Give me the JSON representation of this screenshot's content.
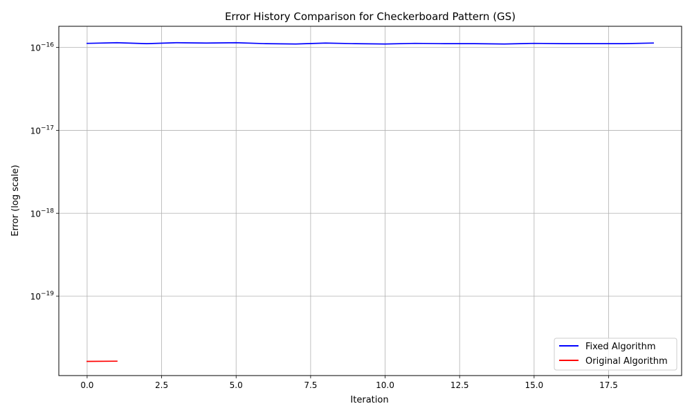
{
  "chart_data": {
    "type": "line",
    "title": "Error History Comparison for Checkerboard Pattern (GS)",
    "xlabel": "Iteration",
    "ylabel": "Error (log scale)",
    "yscale": "log",
    "grid": true,
    "legend_position": "lower-right",
    "xlim": [
      -0.95,
      19.95
    ],
    "ylim": [
      1.1e-20,
      1.8e-16
    ],
    "x_ticks": [
      0.0,
      2.5,
      5.0,
      7.5,
      10.0,
      12.5,
      15.0,
      17.5
    ],
    "x_tick_labels": [
      "0.0",
      "2.5",
      "5.0",
      "7.5",
      "10.0",
      "12.5",
      "15.0",
      "17.5"
    ],
    "y_ticks": [
      {
        "value": 1e-16,
        "base": "10",
        "exp": "−16"
      },
      {
        "value": 1e-17,
        "base": "10",
        "exp": "−17"
      },
      {
        "value": 1e-18,
        "base": "10",
        "exp": "−18"
      },
      {
        "value": 1e-19,
        "base": "10",
        "exp": "−19"
      }
    ],
    "series": [
      {
        "name": "Fixed Algorithm",
        "color": "#0000ff",
        "x": [
          0,
          1,
          2,
          3,
          4,
          5,
          6,
          7,
          8,
          9,
          10,
          11,
          12,
          13,
          14,
          15,
          16,
          17,
          18,
          19
        ],
        "y": [
          1.12e-16,
          1.14e-16,
          1.11e-16,
          1.14e-16,
          1.13e-16,
          1.14e-16,
          1.11e-16,
          1.1e-16,
          1.13e-16,
          1.11e-16,
          1.1e-16,
          1.12e-16,
          1.11e-16,
          1.11e-16,
          1.1e-16,
          1.12e-16,
          1.11e-16,
          1.11e-16,
          1.11e-16,
          1.13e-16
        ]
      },
      {
        "name": "Original Algorithm",
        "color": "#ff0000",
        "x": [
          0,
          1
        ],
        "y": [
          1.63e-20,
          1.64e-20
        ]
      }
    ]
  }
}
